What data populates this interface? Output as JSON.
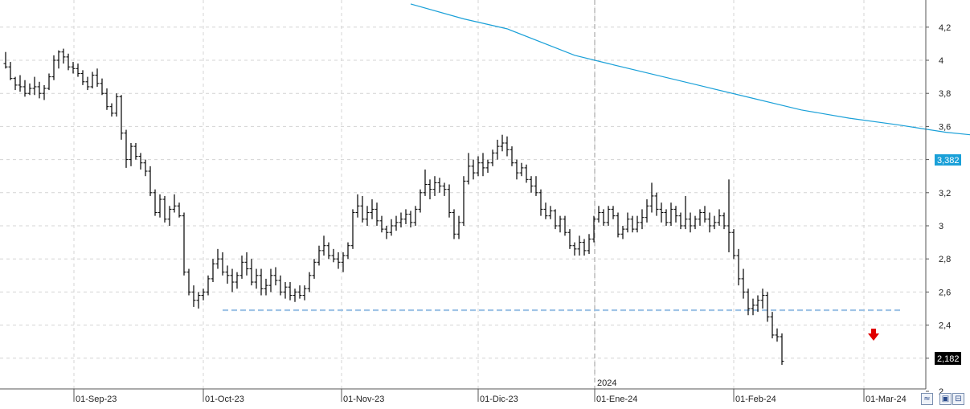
{
  "chart_data": {
    "type": "ohlc",
    "title": "",
    "xlabel": "",
    "ylabel": "",
    "ylim": [
      2.0,
      4.35
    ],
    "y_ticks": [
      "4,2",
      "4",
      "3,8",
      "3,6",
      "3,4",
      "3,2",
      "3",
      "2,8",
      "2,6",
      "2,4",
      "2,2",
      "2"
    ],
    "x_ticks": [
      "01-Sep-23",
      "01-Oct-23",
      "01-Nov-23",
      "01-Dic-23",
      "01-Ene-24",
      "01-Feb-24",
      "01-Mar-24"
    ],
    "year_marker": "2024",
    "grid": true,
    "moving_average": {
      "color": "#1aa0d8",
      "last_value_label": "3,382",
      "points": [
        [
          84,
          4.34
        ],
        [
          95,
          4.25
        ],
        [
          104,
          4.19
        ],
        [
          118,
          4.03
        ],
        [
          125,
          3.98
        ],
        [
          135,
          3.91
        ],
        [
          145,
          3.84
        ],
        [
          155,
          3.77
        ],
        [
          165,
          3.7
        ],
        [
          175,
          3.65
        ],
        [
          185,
          3.61
        ],
        [
          195,
          3.565
        ],
        [
          205,
          3.535
        ],
        [
          215,
          3.5
        ],
        [
          221,
          3.48
        ],
        [
          227,
          3.465
        ],
        [
          237,
          3.435
        ]
      ]
    },
    "support_line": {
      "value": 2.49,
      "color": "#9ec3e6",
      "style": "dashed"
    },
    "last_price": {
      "value": 2.182,
      "label": "2,182"
    },
    "signal": {
      "type": "sell-arrow",
      "color": "#e00000"
    },
    "ohlc": [
      [
        3.98,
        4.05,
        3.95,
        3.96
      ],
      [
        3.96,
        3.99,
        3.88,
        3.89
      ],
      [
        3.89,
        3.9,
        3.82,
        3.85
      ],
      [
        3.85,
        3.91,
        3.81,
        3.84
      ],
      [
        3.84,
        3.88,
        3.78,
        3.8
      ],
      [
        3.8,
        3.86,
        3.79,
        3.83
      ],
      [
        3.83,
        3.9,
        3.79,
        3.84
      ],
      [
        3.84,
        3.87,
        3.77,
        3.8
      ],
      [
        3.8,
        3.85,
        3.76,
        3.83
      ],
      [
        3.83,
        3.92,
        3.82,
        3.9
      ],
      [
        3.9,
        4.03,
        3.88,
        4.0
      ],
      [
        4.0,
        4.06,
        3.95,
        4.05
      ],
      [
        4.05,
        4.07,
        3.98,
        4.02
      ],
      [
        4.02,
        4.04,
        3.94,
        3.96
      ],
      [
        3.96,
        3.99,
        3.92,
        3.95
      ],
      [
        3.95,
        3.98,
        3.9,
        3.92
      ],
      [
        3.92,
        3.94,
        3.85,
        3.87
      ],
      [
        3.87,
        3.9,
        3.82,
        3.84
      ],
      [
        3.84,
        3.93,
        3.83,
        3.91
      ],
      [
        3.91,
        3.95,
        3.84,
        3.86
      ],
      [
        3.86,
        3.89,
        3.79,
        3.8
      ],
      [
        3.8,
        3.83,
        3.7,
        3.72
      ],
      [
        3.72,
        3.74,
        3.66,
        3.68
      ],
      [
        3.68,
        3.8,
        3.66,
        3.78
      ],
      [
        3.78,
        3.79,
        3.52,
        3.56
      ],
      [
        3.56,
        3.58,
        3.35,
        3.4
      ],
      [
        3.4,
        3.5,
        3.36,
        3.48
      ],
      [
        3.48,
        3.5,
        3.4,
        3.42
      ],
      [
        3.42,
        3.44,
        3.34,
        3.38
      ],
      [
        3.38,
        3.4,
        3.3,
        3.33
      ],
      [
        3.33,
        3.36,
        3.18,
        3.2
      ],
      [
        3.2,
        3.22,
        3.06,
        3.08
      ],
      [
        3.08,
        3.19,
        3.05,
        3.16
      ],
      [
        3.16,
        3.18,
        3.02,
        3.04
      ],
      [
        3.04,
        3.12,
        3.0,
        3.1
      ],
      [
        3.1,
        3.19,
        3.08,
        3.12
      ],
      [
        3.12,
        3.14,
        3.05,
        3.06
      ],
      [
        3.06,
        3.08,
        2.7,
        2.72
      ],
      [
        2.72,
        2.74,
        2.58,
        2.6
      ],
      [
        2.6,
        2.64,
        2.51,
        2.55
      ],
      [
        2.55,
        2.6,
        2.5,
        2.58
      ],
      [
        2.58,
        2.62,
        2.55,
        2.6
      ],
      [
        2.6,
        2.7,
        2.58,
        2.68
      ],
      [
        2.68,
        2.8,
        2.66,
        2.77
      ],
      [
        2.77,
        2.86,
        2.74,
        2.8
      ],
      [
        2.8,
        2.84,
        2.7,
        2.72
      ],
      [
        2.72,
        2.76,
        2.65,
        2.7
      ],
      [
        2.7,
        2.74,
        2.6,
        2.66
      ],
      [
        2.66,
        2.72,
        2.62,
        2.7
      ],
      [
        2.7,
        2.82,
        2.68,
        2.78
      ],
      [
        2.78,
        2.84,
        2.7,
        2.74
      ],
      [
        2.74,
        2.8,
        2.64,
        2.66
      ],
      [
        2.66,
        2.74,
        2.62,
        2.7
      ],
      [
        2.7,
        2.74,
        2.58,
        2.62
      ],
      [
        2.62,
        2.68,
        2.58,
        2.64
      ],
      [
        2.64,
        2.74,
        2.6,
        2.7
      ],
      [
        2.7,
        2.75,
        2.64,
        2.67
      ],
      [
        2.67,
        2.7,
        2.58,
        2.6
      ],
      [
        2.6,
        2.66,
        2.56,
        2.63
      ],
      [
        2.63,
        2.66,
        2.55,
        2.58
      ],
      [
        2.58,
        2.62,
        2.54,
        2.6
      ],
      [
        2.6,
        2.64,
        2.56,
        2.58
      ],
      [
        2.58,
        2.64,
        2.55,
        2.62
      ],
      [
        2.62,
        2.72,
        2.6,
        2.7
      ],
      [
        2.7,
        2.8,
        2.68,
        2.78
      ],
      [
        2.78,
        2.88,
        2.76,
        2.85
      ],
      [
        2.85,
        2.94,
        2.82,
        2.88
      ],
      [
        2.88,
        2.9,
        2.8,
        2.82
      ],
      [
        2.82,
        2.86,
        2.78,
        2.8
      ],
      [
        2.8,
        2.84,
        2.74,
        2.78
      ],
      [
        2.78,
        2.84,
        2.72,
        2.82
      ],
      [
        2.82,
        2.9,
        2.8,
        2.88
      ],
      [
        2.88,
        3.1,
        2.86,
        3.08
      ],
      [
        3.08,
        3.19,
        3.05,
        3.12
      ],
      [
        3.12,
        3.18,
        3.02,
        3.04
      ],
      [
        3.04,
        3.12,
        3.0,
        3.08
      ],
      [
        3.08,
        3.16,
        3.04,
        3.1
      ],
      [
        3.1,
        3.14,
        3.0,
        3.03
      ],
      [
        3.03,
        3.06,
        2.96,
        2.98
      ],
      [
        2.98,
        3.0,
        2.92,
        2.96
      ],
      [
        2.96,
        3.04,
        2.94,
        3.0
      ],
      [
        3.0,
        3.06,
        2.97,
        3.02
      ],
      [
        3.02,
        3.08,
        2.99,
        3.04
      ],
      [
        3.04,
        3.1,
        3.01,
        3.07
      ],
      [
        3.07,
        3.09,
        2.99,
        3.02
      ],
      [
        3.02,
        3.12,
        3.0,
        3.1
      ],
      [
        3.1,
        3.22,
        3.08,
        3.2
      ],
      [
        3.2,
        3.34,
        3.18,
        3.25
      ],
      [
        3.25,
        3.28,
        3.16,
        3.22
      ],
      [
        3.22,
        3.3,
        3.18,
        3.26
      ],
      [
        3.26,
        3.29,
        3.2,
        3.24
      ],
      [
        3.24,
        3.26,
        3.18,
        3.22
      ],
      [
        3.22,
        3.25,
        3.05,
        3.08
      ],
      [
        3.08,
        3.1,
        2.92,
        2.95
      ],
      [
        2.95,
        3.06,
        2.92,
        3.02
      ],
      [
        3.02,
        3.3,
        3.0,
        3.27
      ],
      [
        3.27,
        3.44,
        3.25,
        3.36
      ],
      [
        3.36,
        3.4,
        3.28,
        3.32
      ],
      [
        3.32,
        3.42,
        3.3,
        3.38
      ],
      [
        3.38,
        3.44,
        3.3,
        3.35
      ],
      [
        3.35,
        3.4,
        3.32,
        3.38
      ],
      [
        3.38,
        3.46,
        3.36,
        3.44
      ],
      [
        3.44,
        3.52,
        3.4,
        3.48
      ],
      [
        3.48,
        3.55,
        3.45,
        3.5
      ],
      [
        3.5,
        3.54,
        3.42,
        3.46
      ],
      [
        3.46,
        3.48,
        3.36,
        3.38
      ],
      [
        3.38,
        3.4,
        3.28,
        3.32
      ],
      [
        3.32,
        3.38,
        3.3,
        3.35
      ],
      [
        3.35,
        3.37,
        3.26,
        3.28
      ],
      [
        3.28,
        3.3,
        3.2,
        3.24
      ],
      [
        3.24,
        3.3,
        3.18,
        3.2
      ],
      [
        3.2,
        3.22,
        3.06,
        3.1
      ],
      [
        3.1,
        3.14,
        3.04,
        3.06
      ],
      [
        3.06,
        3.12,
        3.04,
        3.09
      ],
      [
        3.09,
        3.1,
        2.98,
        3.0
      ],
      [
        3.0,
        3.06,
        2.96,
        3.04
      ],
      [
        3.04,
        3.06,
        2.94,
        2.96
      ],
      [
        2.96,
        2.98,
        2.86,
        2.88
      ],
      [
        2.88,
        2.9,
        2.82,
        2.86
      ],
      [
        2.86,
        2.94,
        2.82,
        2.9
      ],
      [
        2.9,
        2.92,
        2.82,
        2.85
      ],
      [
        2.85,
        2.95,
        2.83,
        2.92
      ],
      [
        2.92,
        3.06,
        2.9,
        3.04
      ],
      [
        3.04,
        3.12,
        3.02,
        3.08
      ],
      [
        3.08,
        3.1,
        3.0,
        3.02
      ],
      [
        3.02,
        3.12,
        3.0,
        3.1
      ],
      [
        3.1,
        3.12,
        3.04,
        3.06
      ],
      [
        3.06,
        3.08,
        2.93,
        2.95
      ],
      [
        2.95,
        3.0,
        2.92,
        2.98
      ],
      [
        2.98,
        3.08,
        2.96,
        3.04
      ],
      [
        3.04,
        3.06,
        2.96,
        2.98
      ],
      [
        2.98,
        3.06,
        2.96,
        3.02
      ],
      [
        3.02,
        3.1,
        2.98,
        3.05
      ],
      [
        3.05,
        3.16,
        3.02,
        3.12
      ],
      [
        3.12,
        3.26,
        3.08,
        3.18
      ],
      [
        3.18,
        3.2,
        3.06,
        3.1
      ],
      [
        3.1,
        3.14,
        3.02,
        3.08
      ],
      [
        3.08,
        3.1,
        3.0,
        3.02
      ],
      [
        3.02,
        3.14,
        3.0,
        3.1
      ],
      [
        3.1,
        3.12,
        3.02,
        3.06
      ],
      [
        3.06,
        3.08,
        2.98,
        3.0
      ],
      [
        3.0,
        3.18,
        2.98,
        3.04
      ],
      [
        3.04,
        3.08,
        2.96,
        3.0
      ],
      [
        3.0,
        3.06,
        2.98,
        3.04
      ],
      [
        3.04,
        3.1,
        3.0,
        3.08
      ],
      [
        3.08,
        3.12,
        3.02,
        3.04
      ],
      [
        3.04,
        3.08,
        2.96,
        3.0
      ],
      [
        3.0,
        3.06,
        2.98,
        3.02
      ],
      [
        3.02,
        3.1,
        3.0,
        3.06
      ],
      [
        3.06,
        3.08,
        2.98,
        3.0
      ],
      [
        3.0,
        3.28,
        2.84,
        2.96
      ],
      [
        2.96,
        2.98,
        2.8,
        2.82
      ],
      [
        2.82,
        2.86,
        2.64,
        2.68
      ],
      [
        2.68,
        2.74,
        2.56,
        2.6
      ],
      [
        2.6,
        2.62,
        2.46,
        2.5
      ],
      [
        2.5,
        2.56,
        2.46,
        2.52
      ],
      [
        2.52,
        2.58,
        2.48,
        2.55
      ],
      [
        2.55,
        2.62,
        2.5,
        2.58
      ],
      [
        2.58,
        2.6,
        2.42,
        2.45
      ],
      [
        2.45,
        2.48,
        2.32,
        2.34
      ],
      [
        2.34,
        2.38,
        2.3,
        2.33
      ],
      [
        2.33,
        2.35,
        2.16,
        2.182
      ]
    ]
  }
}
